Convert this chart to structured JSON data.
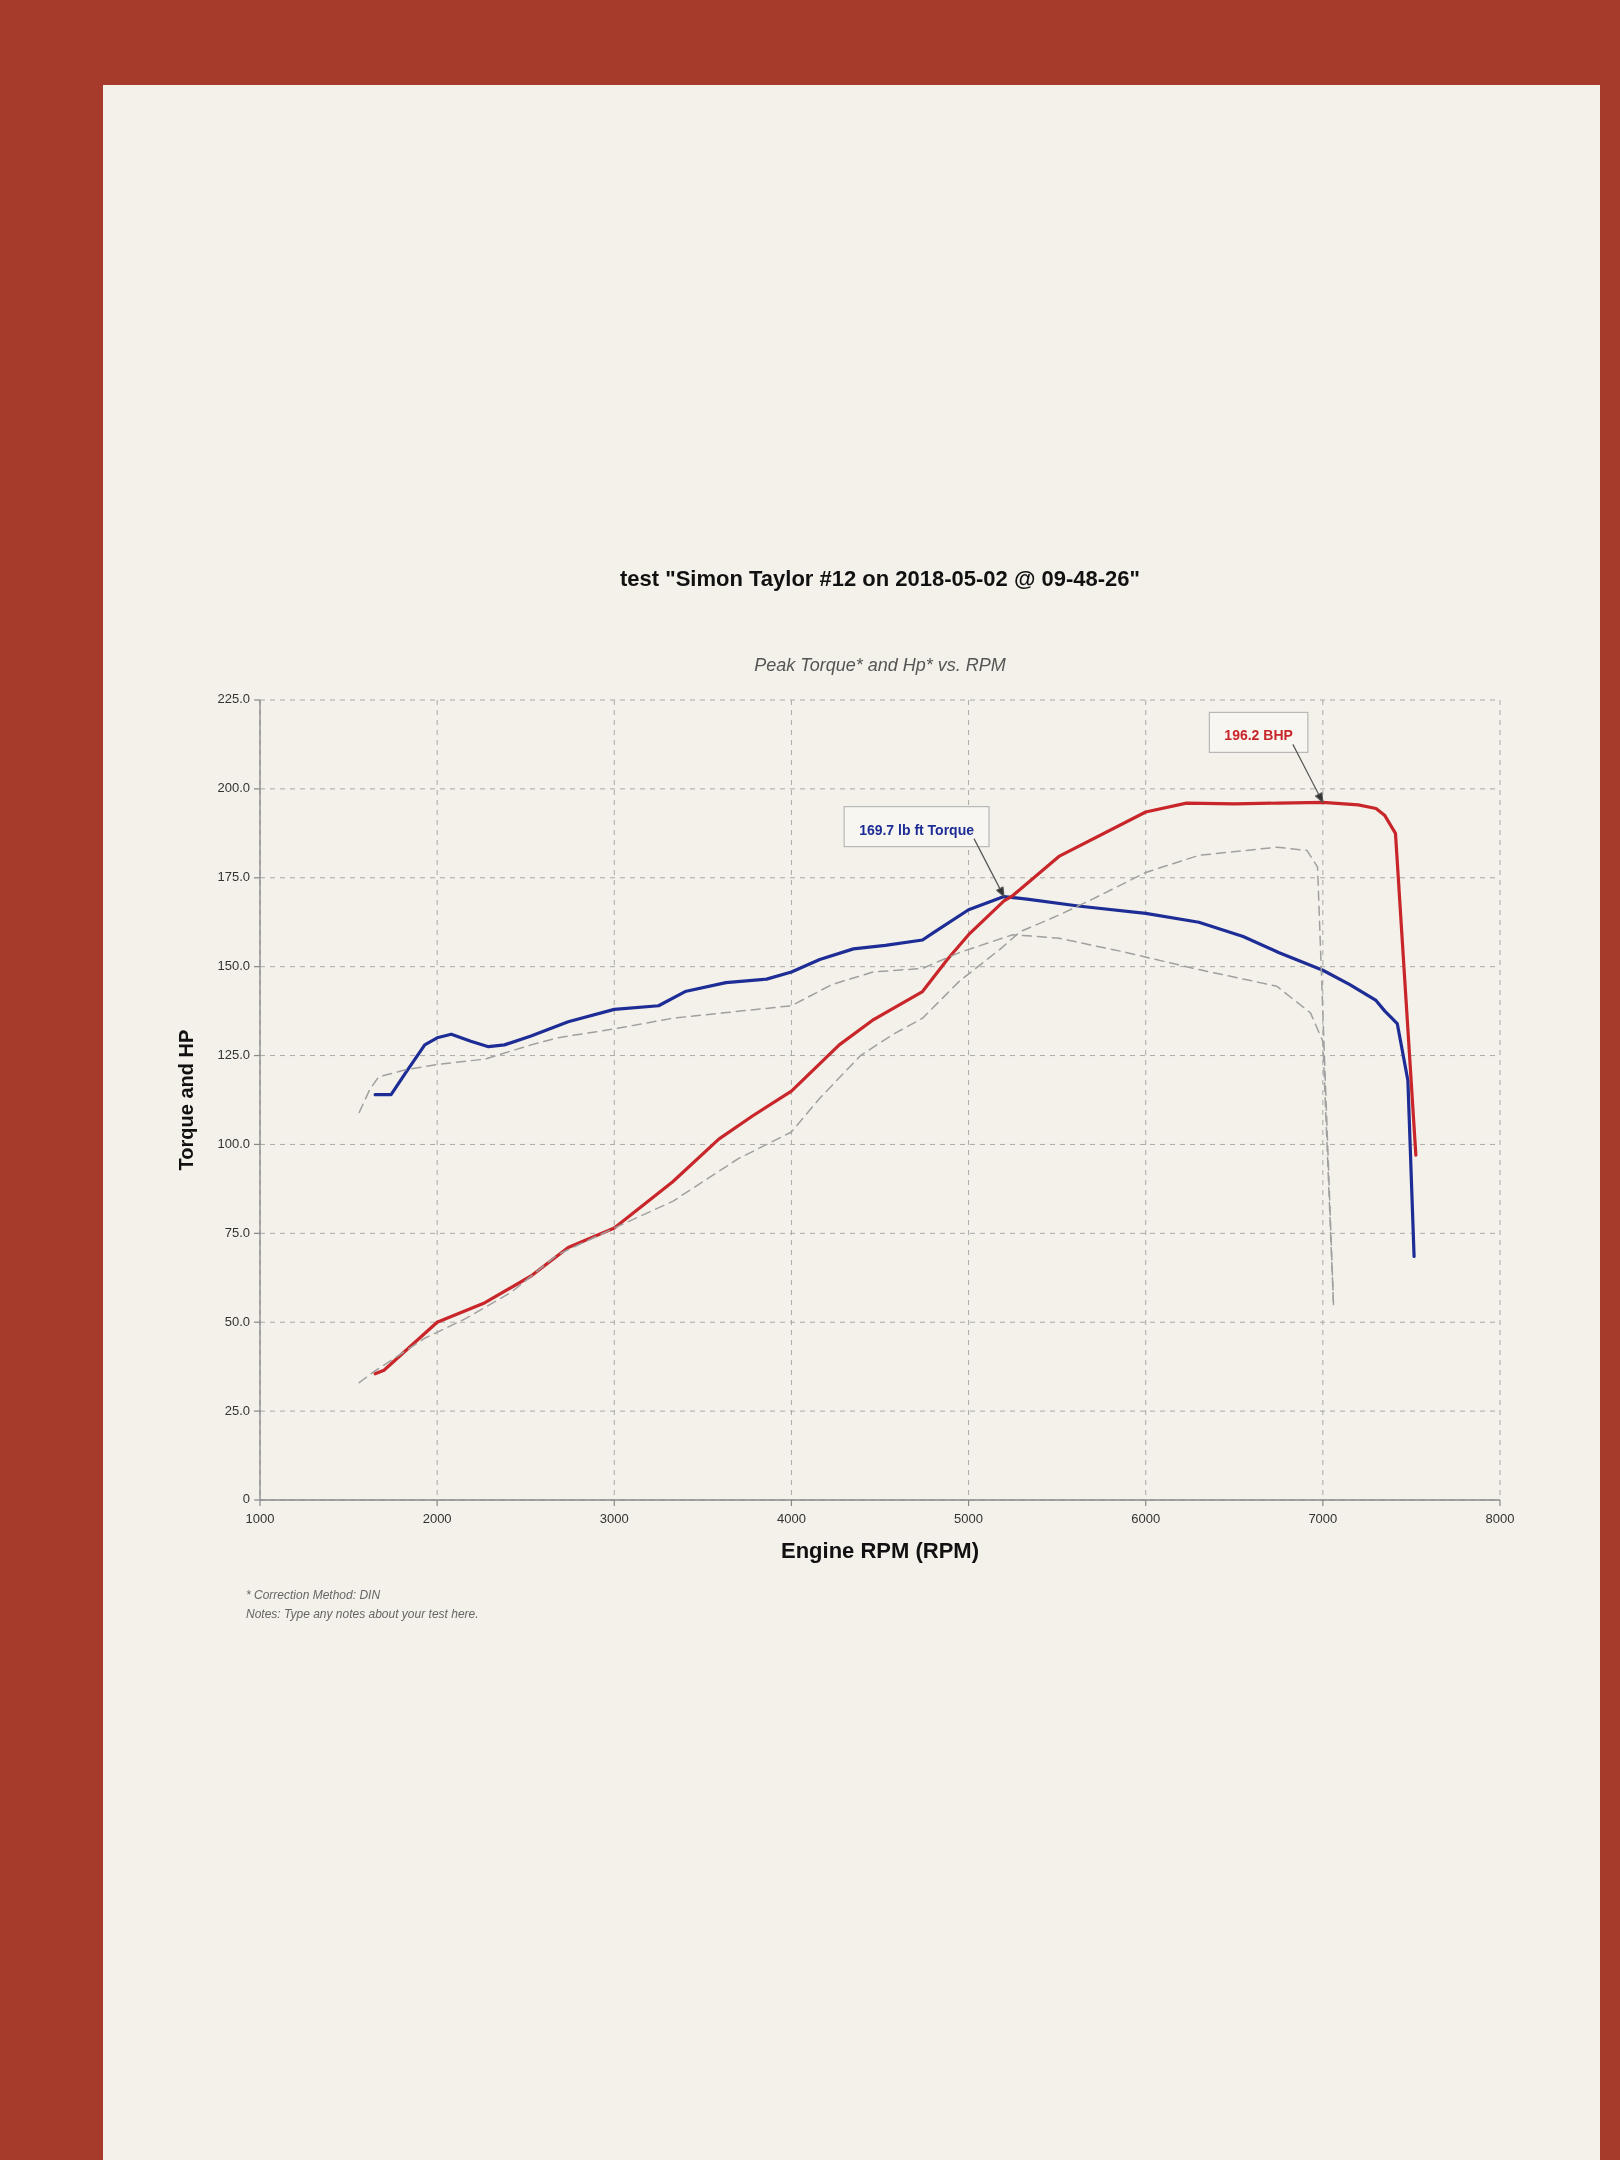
{
  "chart_data": {
    "type": "line",
    "title": "test \"Simon Taylor #12 on 2018-05-02 @ 09-48-26\"",
    "subtitle": "Peak Torque* and Hp* vs. RPM",
    "xlabel": "Engine RPM (RPM)",
    "ylabel": "Torque and HP",
    "xlim": [
      1000,
      8000
    ],
    "xticks": [
      1000,
      2000,
      3000,
      4000,
      5000,
      6000,
      7000,
      8000
    ],
    "ylim": [
      0,
      225
    ],
    "yticks": [
      0,
      {
        "value": 25,
        "label": "25.0"
      },
      {
        "value": 50,
        "label": "50.0"
      },
      {
        "value": 75,
        "label": "75.0"
      },
      {
        "value": 100,
        "label": "100.0"
      },
      {
        "value": 125,
        "label": "125.0"
      },
      {
        "value": 150,
        "label": "150.0"
      },
      {
        "value": 175,
        "label": "175.0"
      },
      {
        "value": 200,
        "label": "200.0"
      },
      {
        "value": 225,
        "label": "225.0"
      }
    ],
    "grid": true,
    "series": [
      {
        "color": "#1e2d96",
        "line_style": "solid",
        "x": [
          1650,
          1740,
          1820,
          1930,
          2000,
          2080,
          2190,
          2290,
          2380,
          2530,
          2740,
          3000,
          3250,
          3400,
          3630,
          3860,
          4000,
          4160,
          4350,
          4530,
          4740,
          4800,
          5000,
          5200,
          5330,
          5630,
          6000,
          6300,
          6550,
          6750,
          7000,
          7150,
          7300,
          7350,
          7420,
          7480,
          7515
        ],
        "values": [
          114,
          114,
          120,
          128,
          130,
          131,
          129,
          127.5,
          128,
          130.5,
          134.5,
          138,
          139,
          143,
          145.5,
          146.5,
          148.5,
          152,
          155,
          156,
          157.5,
          159.5,
          166,
          169.7,
          169,
          167,
          165,
          162.5,
          158.5,
          154,
          149,
          145,
          140.5,
          137.5,
          134,
          118,
          68.5
        ]
      },
      {
        "color": "#c8262a",
        "line_style": "solid",
        "x": [
          1650,
          1700,
          2000,
          2270,
          2530,
          2740,
          3000,
          3330,
          3590,
          3780,
          4000,
          4270,
          4460,
          4740,
          4880,
          5000,
          5200,
          5250,
          5510,
          6000,
          6230,
          6500,
          6750,
          7000,
          7200,
          7300,
          7350,
          7410,
          7525
        ],
        "values": [
          35.5,
          36.5,
          50,
          55.5,
          63,
          71,
          76.5,
          89.5,
          101.5,
          108,
          115,
          128,
          135,
          143,
          152,
          159,
          168.5,
          170,
          181,
          193.5,
          196,
          195.8,
          196,
          196.2,
          195.5,
          194.5,
          192.5,
          187.5,
          97
        ]
      },
      {
        "color": "#a0a0a0",
        "line_style": "dashed",
        "x": [
          1560,
          1620,
          1670,
          1820,
          2000,
          2270,
          2530,
          2680,
          3000,
          3330,
          3710,
          4000,
          4230,
          4460,
          4740,
          4950,
          5250,
          5510,
          5890,
          6270,
          6740,
          6930,
          7000,
          7060
        ],
        "values": [
          109,
          115.5,
          119,
          121,
          122.5,
          124,
          128,
          130,
          132.5,
          135.5,
          137.5,
          139,
          145,
          148.5,
          149.5,
          154,
          159,
          158,
          154,
          149.5,
          144.5,
          137,
          129,
          55
        ]
      },
      {
        "color": "#a0a0a0",
        "line_style": "dashed",
        "x": [
          1560,
          1640,
          1930,
          2160,
          2420,
          2680,
          3000,
          3330,
          3700,
          4000,
          4160,
          4390,
          4575,
          4740,
          4950,
          5180,
          5290,
          5510,
          5700,
          6000,
          6300,
          6740,
          6910,
          6970,
          7060
        ],
        "values": [
          33,
          36,
          45.5,
          51,
          58.5,
          69,
          76.5,
          84,
          96,
          103.5,
          113,
          125,
          131,
          135.5,
          146,
          155,
          159.8,
          164.5,
          169,
          176.5,
          181.3,
          183.6,
          182.7,
          178,
          55
        ]
      }
    ],
    "annotations": [
      {
        "text": "169.7 lb ft Torque",
        "x": 5200,
        "y": 169.7
      },
      {
        "text": "196.2 BHP",
        "x": 7000,
        "y": 196.2
      },
      "* Correction Method: DIN",
      "Notes: Type any notes about your test here."
    ]
  }
}
